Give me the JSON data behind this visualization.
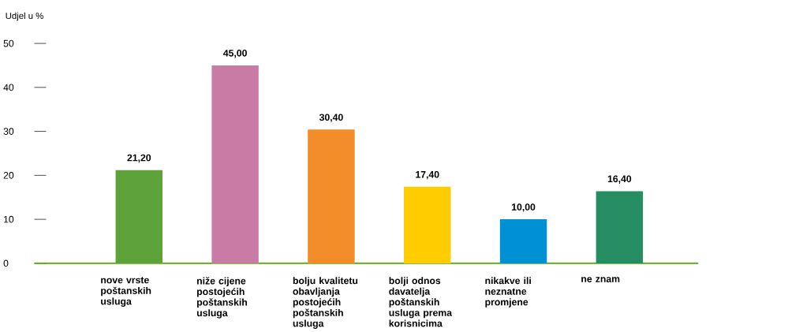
{
  "chart_data": {
    "type": "bar",
    "ylabel": "Udjel u %",
    "categories": [
      "nove vrste poštanskih usluga",
      "niže cijene postojećih poštanskih usluga",
      "bolju kvalitetu obavljanja postojećih poštanskih usluga",
      "bolji odnos davatelja poštanskih usluga prema korisnicima",
      "nikakve ili neznatne promjene",
      "ne znam"
    ],
    "values": [
      21.2,
      45.0,
      30.4,
      17.4,
      10.0,
      16.4
    ],
    "value_labels": [
      "21,20",
      "45,00",
      "30,40",
      "17,40",
      "10,00",
      "16,40"
    ],
    "colors": [
      "#5ea33a",
      "#c97ba5",
      "#f28c28",
      "#ffcc00",
      "#0091d5",
      "#268c62"
    ],
    "ylim": [
      0,
      50
    ],
    "yticks": [
      0,
      10,
      20,
      30,
      40,
      50
    ]
  }
}
